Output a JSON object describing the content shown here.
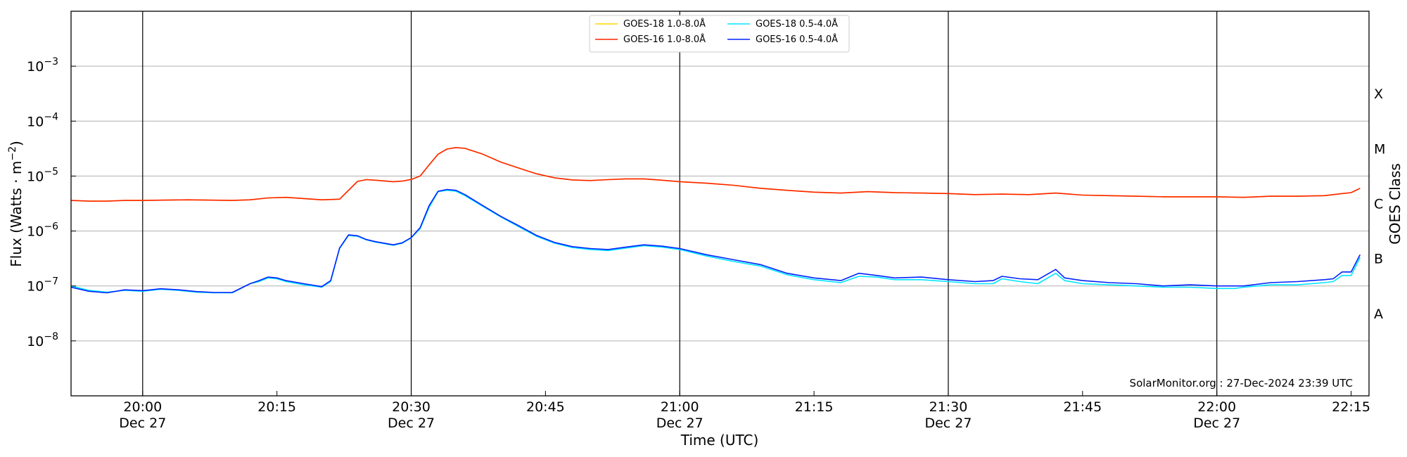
{
  "chart_data": {
    "type": "line",
    "xlabel": "Time (UTC)",
    "ylabel": "Flux (Watts · m⁻²)",
    "y2label": "GOES Class",
    "yscale": "log",
    "xlim": [
      "19:52",
      "22:17"
    ],
    "ylim": [
      1e-09,
      0.01
    ],
    "grid": "horizontal",
    "legend_placement": "top-center",
    "credit": "SolarMonitor.org : 27-Dec-2024 23:39 UTC",
    "x_ticks": [
      {
        "time": "20:00",
        "label": "20:00",
        "sub": "Dec 27"
      },
      {
        "time": "20:15",
        "label": "20:15",
        "sub": ""
      },
      {
        "time": "20:30",
        "label": "20:30",
        "sub": "Dec 27"
      },
      {
        "time": "20:45",
        "label": "20:45",
        "sub": ""
      },
      {
        "time": "21:00",
        "label": "21:00",
        "sub": "Dec 27"
      },
      {
        "time": "21:15",
        "label": "21:15",
        "sub": ""
      },
      {
        "time": "21:30",
        "label": "21:30",
        "sub": "Dec 27"
      },
      {
        "time": "21:45",
        "label": "21:45",
        "sub": ""
      },
      {
        "time": "22:00",
        "label": "22:00",
        "sub": "Dec 27"
      },
      {
        "time": "22:15",
        "label": "22:15",
        "sub": ""
      }
    ],
    "vlines": [
      "20:00",
      "20:30",
      "21:00",
      "21:30",
      "22:00"
    ],
    "y_ticks": [
      {
        "value": 1e-08,
        "label": "10",
        "exp": "−8"
      },
      {
        "value": 1e-07,
        "label": "10",
        "exp": "−7"
      },
      {
        "value": 1e-06,
        "label": "10",
        "exp": "−6"
      },
      {
        "value": 1e-05,
        "label": "10",
        "exp": "−5"
      },
      {
        "value": 0.0001,
        "label": "10",
        "exp": "−4"
      },
      {
        "value": 0.001,
        "label": "10",
        "exp": "−3"
      }
    ],
    "classes": [
      {
        "label": "A",
        "value": 3.16e-08
      },
      {
        "label": "B",
        "value": 3.16e-07
      },
      {
        "label": "C",
        "value": 3.16e-06
      },
      {
        "label": "M",
        "value": 3.16e-05
      },
      {
        "label": "X",
        "value": 0.000316
      }
    ],
    "series": [
      {
        "name": "GOES-18 1.0-8.0Å",
        "color": "#ffd700",
        "x": [
          "19:52",
          "19:54",
          "19:56",
          "19:58",
          "20:00",
          "20:05",
          "20:10",
          "20:12",
          "20:14",
          "20:16",
          "20:18",
          "20:20",
          "20:22",
          "20:23",
          "20:24",
          "20:25",
          "20:26",
          "20:28",
          "20:29",
          "20:30",
          "20:31",
          "20:32",
          "20:33",
          "20:34",
          "20:35",
          "20:36",
          "20:38",
          "20:40",
          "20:42",
          "20:44",
          "20:46",
          "20:48",
          "20:50",
          "20:52",
          "20:54",
          "20:56",
          "20:58",
          "21:00",
          "21:03",
          "21:06",
          "21:09",
          "21:12",
          "21:15",
          "21:18",
          "21:21",
          "21:24",
          "21:27",
          "21:30",
          "21:33",
          "21:36",
          "21:39",
          "21:42",
          "21:45",
          "21:48",
          "21:51",
          "21:54",
          "21:57",
          "22:00",
          "22:03",
          "22:06",
          "22:09",
          "22:12",
          "22:13",
          "22:14",
          "22:15",
          "22:16"
        ],
        "values": [
          3.6e-06,
          3.5e-06,
          3.5e-06,
          3.6e-06,
          3.6e-06,
          3.7e-06,
          3.6e-06,
          3.7e-06,
          4e-06,
          4.1e-06,
          3.9e-06,
          3.7e-06,
          3.8e-06,
          5.5e-06,
          8e-06,
          8.6e-06,
          8.4e-06,
          7.9e-06,
          8.1e-06,
          8.7e-06,
          1e-05,
          1.6e-05,
          2.5e-05,
          3.1e-05,
          3.3e-05,
          3.2e-05,
          2.5e-05,
          1.8e-05,
          1.4e-05,
          1.1e-05,
          9.3e-06,
          8.5e-06,
          8.3e-06,
          8.6e-06,
          8.9e-06,
          8.9e-06,
          8.4e-06,
          7.9e-06,
          7.4e-06,
          6.8e-06,
          6e-06,
          5.5e-06,
          5.1e-06,
          4.9e-06,
          5.2e-06,
          5e-06,
          4.9e-06,
          4.8e-06,
          4.6e-06,
          4.7e-06,
          4.6e-06,
          4.9e-06,
          4.5e-06,
          4.4e-06,
          4.3e-06,
          4.2e-06,
          4.2e-06,
          4.2e-06,
          4.1e-06,
          4.3e-06,
          4.3e-06,
          4.4e-06,
          4.6e-06,
          4.8e-06,
          5e-06,
          6e-06
        ]
      },
      {
        "name": "GOES-16 1.0-8.0Å",
        "color": "#ff2200",
        "x": [
          "19:52",
          "19:54",
          "19:56",
          "19:58",
          "20:00",
          "20:05",
          "20:10",
          "20:12",
          "20:14",
          "20:16",
          "20:18",
          "20:20",
          "20:22",
          "20:23",
          "20:24",
          "20:25",
          "20:26",
          "20:28",
          "20:29",
          "20:30",
          "20:31",
          "20:32",
          "20:33",
          "20:34",
          "20:35",
          "20:36",
          "20:38",
          "20:40",
          "20:42",
          "20:44",
          "20:46",
          "20:48",
          "20:50",
          "20:52",
          "20:54",
          "20:56",
          "20:58",
          "21:00",
          "21:03",
          "21:06",
          "21:09",
          "21:12",
          "21:15",
          "21:18",
          "21:21",
          "21:24",
          "21:27",
          "21:30",
          "21:33",
          "21:36",
          "21:39",
          "21:42",
          "21:45",
          "21:48",
          "21:51",
          "21:54",
          "21:57",
          "22:00",
          "22:03",
          "22:06",
          "22:09",
          "22:12",
          "22:13",
          "22:14",
          "22:15",
          "22:16"
        ],
        "values": [
          3.6e-06,
          3.5e-06,
          3.5e-06,
          3.6e-06,
          3.6e-06,
          3.7e-06,
          3.6e-06,
          3.7e-06,
          4e-06,
          4.1e-06,
          3.9e-06,
          3.7e-06,
          3.8e-06,
          5.5e-06,
          8e-06,
          8.6e-06,
          8.4e-06,
          7.9e-06,
          8.1e-06,
          8.7e-06,
          1e-05,
          1.6e-05,
          2.5e-05,
          3.1e-05,
          3.3e-05,
          3.2e-05,
          2.5e-05,
          1.8e-05,
          1.4e-05,
          1.1e-05,
          9.3e-06,
          8.5e-06,
          8.3e-06,
          8.6e-06,
          8.9e-06,
          8.9e-06,
          8.4e-06,
          7.9e-06,
          7.4e-06,
          6.8e-06,
          6e-06,
          5.5e-06,
          5.1e-06,
          4.9e-06,
          5.2e-06,
          5e-06,
          4.9e-06,
          4.8e-06,
          4.6e-06,
          4.7e-06,
          4.6e-06,
          4.9e-06,
          4.5e-06,
          4.4e-06,
          4.3e-06,
          4.2e-06,
          4.2e-06,
          4.2e-06,
          4.1e-06,
          4.3e-06,
          4.3e-06,
          4.4e-06,
          4.6e-06,
          4.8e-06,
          5e-06,
          6e-06
        ]
      },
      {
        "name": "GOES-18 0.5-4.0Å",
        "color": "#00e5ff",
        "x": [
          "19:52",
          "19:54",
          "19:56",
          "19:58",
          "20:00",
          "20:02",
          "20:04",
          "20:06",
          "20:08",
          "20:10",
          "20:12",
          "20:13",
          "20:14",
          "20:15",
          "20:16",
          "20:18",
          "20:20",
          "20:21",
          "20:22",
          "20:23",
          "20:24",
          "20:25",
          "20:26",
          "20:28",
          "20:29",
          "20:30",
          "20:31",
          "20:32",
          "20:33",
          "20:34",
          "20:35",
          "20:36",
          "20:38",
          "20:40",
          "20:42",
          "20:44",
          "20:46",
          "20:48",
          "20:50",
          "20:52",
          "20:54",
          "20:56",
          "20:58",
          "21:00",
          "21:03",
          "21:06",
          "21:09",
          "21:12",
          "21:15",
          "21:18",
          "21:20",
          "21:22",
          "21:24",
          "21:27",
          "21:30",
          "21:33",
          "21:35",
          "21:36",
          "21:38",
          "21:40",
          "21:42",
          "21:43",
          "21:45",
          "21:48",
          "21:51",
          "21:54",
          "21:57",
          "22:00",
          "22:02",
          "22:03",
          "22:06",
          "22:09",
          "22:12",
          "22:13",
          "22:14",
          "22:15",
          "22:16"
        ],
        "values": [
          1e-07,
          8.3e-08,
          7.7e-08,
          8.3e-08,
          8e-08,
          8.7e-08,
          8.3e-08,
          7.7e-08,
          7.5e-08,
          7.5e-08,
          1.1e-07,
          1.2e-07,
          1.4e-07,
          1.35e-07,
          1.2e-07,
          1.05e-07,
          9.5e-08,
          1.2e-07,
          4.8e-07,
          8.3e-07,
          8e-07,
          6.9e-07,
          6.3e-07,
          5.5e-07,
          6e-07,
          7.5e-07,
          1.1e-06,
          2.7e-06,
          5.2e-06,
          5.5e-06,
          5.3e-06,
          4.4e-06,
          2.8e-06,
          1.8e-06,
          1.2e-06,
          8e-07,
          6e-07,
          5e-07,
          4.6e-07,
          4.4e-07,
          4.9e-07,
          5.4e-07,
          5.1e-07,
          4.6e-07,
          3.5e-07,
          2.8e-07,
          2.3e-07,
          1.6e-07,
          1.3e-07,
          1.15e-07,
          1.5e-07,
          1.45e-07,
          1.3e-07,
          1.3e-07,
          1.2e-07,
          1.1e-07,
          1.1e-07,
          1.35e-07,
          1.2e-07,
          1.1e-07,
          1.7e-07,
          1.25e-07,
          1.1e-07,
          1.05e-07,
          1e-07,
          9.5e-08,
          9.5e-08,
          9e-08,
          9e-08,
          9.5e-08,
          1.05e-07,
          1.05e-07,
          1.15e-07,
          1.2e-07,
          1.55e-07,
          1.55e-07,
          3.3e-07
        ]
      },
      {
        "name": "GOES-16 0.5-4.0Å",
        "color": "#0022ff",
        "x": [
          "19:52",
          "19:54",
          "19:56",
          "19:58",
          "20:00",
          "20:02",
          "20:04",
          "20:06",
          "20:08",
          "20:10",
          "20:12",
          "20:13",
          "20:14",
          "20:15",
          "20:16",
          "20:18",
          "20:20",
          "20:21",
          "20:22",
          "20:23",
          "20:24",
          "20:25",
          "20:26",
          "20:28",
          "20:29",
          "20:30",
          "20:31",
          "20:32",
          "20:33",
          "20:34",
          "20:35",
          "20:36",
          "20:38",
          "20:40",
          "20:42",
          "20:44",
          "20:46",
          "20:48",
          "20:50",
          "20:52",
          "20:54",
          "20:56",
          "20:58",
          "21:00",
          "21:03",
          "21:06",
          "21:09",
          "21:12",
          "21:15",
          "21:18",
          "21:20",
          "21:22",
          "21:24",
          "21:27",
          "21:30",
          "21:33",
          "21:35",
          "21:36",
          "21:38",
          "21:40",
          "21:42",
          "21:43",
          "21:45",
          "21:48",
          "21:51",
          "21:54",
          "21:57",
          "22:00",
          "22:02",
          "22:03",
          "22:06",
          "22:09",
          "22:12",
          "22:13",
          "22:14",
          "22:15",
          "22:16"
        ],
        "values": [
          9.5e-08,
          8e-08,
          7.5e-08,
          8.5e-08,
          8.2e-08,
          8.9e-08,
          8.5e-08,
          7.9e-08,
          7.6e-08,
          7.6e-08,
          1.1e-07,
          1.25e-07,
          1.45e-07,
          1.4e-07,
          1.25e-07,
          1.1e-07,
          9.7e-08,
          1.25e-07,
          4.9e-07,
          8.5e-07,
          8.2e-07,
          7e-07,
          6.4e-07,
          5.6e-07,
          6.1e-07,
          7.6e-07,
          1.15e-06,
          2.9e-06,
          5.3e-06,
          5.7e-06,
          5.5e-06,
          4.6e-06,
          2.9e-06,
          1.85e-06,
          1.25e-06,
          8.3e-07,
          6.2e-07,
          5.2e-07,
          4.8e-07,
          4.6e-07,
          5.1e-07,
          5.6e-07,
          5.3e-07,
          4.8e-07,
          3.7e-07,
          3e-07,
          2.45e-07,
          1.7e-07,
          1.4e-07,
          1.25e-07,
          1.7e-07,
          1.55e-07,
          1.4e-07,
          1.45e-07,
          1.3e-07,
          1.2e-07,
          1.25e-07,
          1.5e-07,
          1.35e-07,
          1.3e-07,
          2e-07,
          1.4e-07,
          1.25e-07,
          1.15e-07,
          1.1e-07,
          1e-07,
          1.05e-07,
          1e-07,
          1e-07,
          1e-07,
          1.15e-07,
          1.2e-07,
          1.3e-07,
          1.35e-07,
          1.8e-07,
          1.8e-07,
          3.7e-07
        ]
      }
    ]
  }
}
